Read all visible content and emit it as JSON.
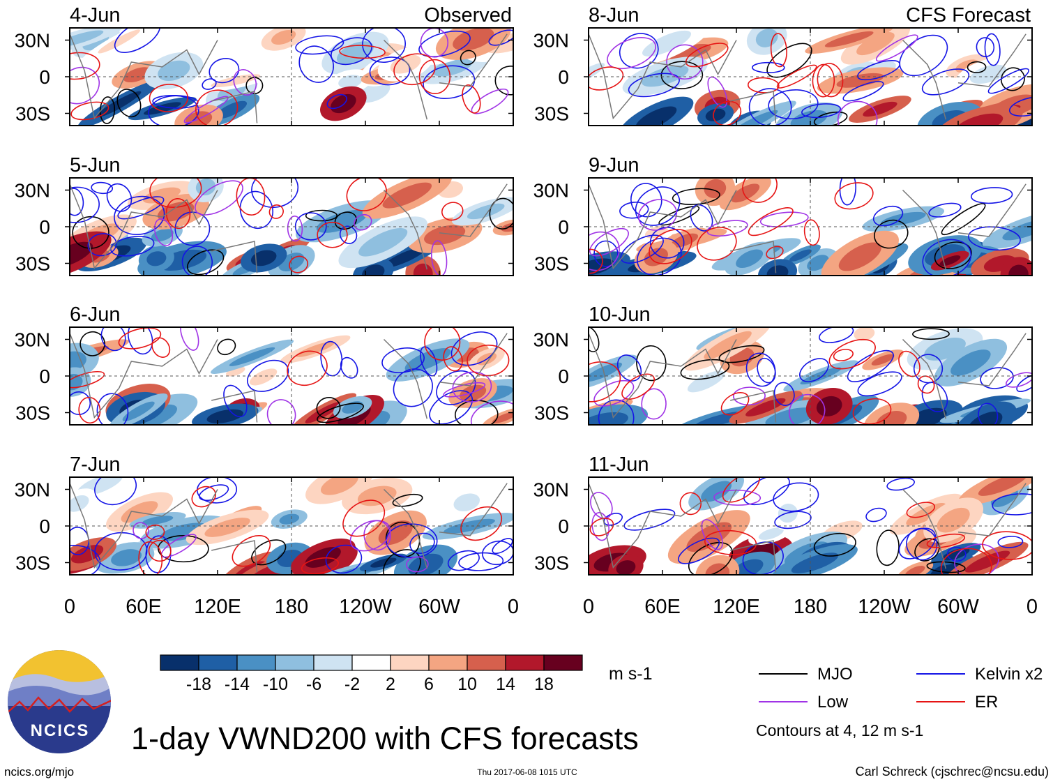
{
  "colors": {
    "mjo": "#000000",
    "kelvin": "#1414e6",
    "low": "#a033e6",
    "er": "#e61414",
    "coast": "#777777"
  },
  "chart_data": {
    "type": "heatmap",
    "title": "1-day VWND200 with CFS forecasts",
    "variable": "VWND200",
    "units": "m s-1",
    "columns": [
      {
        "header": "Observed",
        "dates": [
          "4-Jun",
          "5-Jun",
          "6-Jun",
          "7-Jun"
        ]
      },
      {
        "header": "CFS Forecast",
        "dates": [
          "8-Jun",
          "9-Jun",
          "10-Jun",
          "11-Jun"
        ]
      }
    ],
    "x_ticks": [
      "0",
      "60E",
      "120E",
      "180",
      "120W",
      "60W",
      "0"
    ],
    "y_ticks": [
      "30N",
      "0",
      "30S"
    ],
    "xlim": [
      0,
      360
    ],
    "ylim": [
      -40,
      40
    ],
    "colorbar": {
      "labels": [
        "-18",
        "-14",
        "-10",
        "-6",
        "-2",
        "2",
        "6",
        "10",
        "14",
        "18"
      ],
      "colors": [
        "#08306b",
        "#1f5fa5",
        "#4a90c4",
        "#8fbfdf",
        "#cfe3f2",
        "#ffffff",
        "#fdd5c1",
        "#f4a582",
        "#d6604d",
        "#b2182b",
        "#67001f"
      ]
    },
    "legend": [
      {
        "name": "MJO",
        "key": "mjo"
      },
      {
        "name": "Kelvin x2",
        "key": "kelvin"
      },
      {
        "name": "Low",
        "key": "low"
      },
      {
        "name": "ER",
        "key": "er"
      }
    ],
    "contour_note": "Contours at 4, 12 m s-1"
  },
  "footer": {
    "logo_text": "NCICS",
    "site": "ncics.org/mjo",
    "timestamp": "Thu 2017-06-08 1015 UTC",
    "author": "Carl Schreck (cjschrec@ncsu.edu)"
  }
}
